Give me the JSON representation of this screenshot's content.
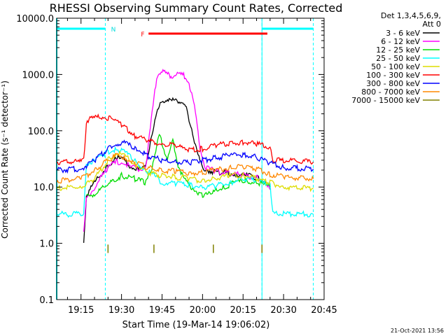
{
  "chart_data": {
    "type": "line",
    "title": "RHESSI Observing Summary Count Rates, Corrected",
    "xlabel": "Start Time (19-Mar-14 19:06:02)",
    "ylabel": "Corrected Count Rate (s⁻¹ detector⁻¹)",
    "y_scale": "log",
    "xlim": [
      "19:06",
      "20:45"
    ],
    "ylim": [
      0.1,
      10000
    ],
    "grid": false,
    "x_ticks": [
      "19:15",
      "19:30",
      "19:45",
      "20:00",
      "20:15",
      "20:30",
      "20:45"
    ],
    "y_ticks": [
      "0.1",
      "1.0",
      "10.0",
      "100.0",
      "1000.0",
      "10000.0"
    ],
    "legend": {
      "position": "top-right",
      "header": [
        "Det 1,3,4,5,6,9,",
        "Att 0"
      ]
    },
    "annotations": {
      "night_label": "N",
      "flare_label": "F",
      "timestamp": "21-Oct-2021 13:56"
    },
    "intervals": {
      "night": [
        [
          "19:06",
          "19:24"
        ],
        [
          "20:22",
          "20:41"
        ]
      ],
      "flare": [
        "19:40",
        "20:24"
      ]
    },
    "series": [
      {
        "name": "3 - 6 keV",
        "color": "#000000",
        "points": [
          [
            "19:16",
            1.0
          ],
          [
            "19:17",
            7
          ],
          [
            "19:20",
            12
          ],
          [
            "19:25",
            24
          ],
          [
            "19:28",
            33
          ],
          [
            "19:31",
            30
          ],
          [
            "19:34",
            22
          ],
          [
            "19:37",
            20
          ],
          [
            "19:39",
            23
          ],
          [
            "19:41",
            80
          ],
          [
            "19:43",
            200
          ],
          [
            "19:45",
            340
          ],
          [
            "19:47",
            360
          ],
          [
            "19:48",
            330
          ],
          [
            "19:50",
            370
          ],
          [
            "19:52",
            320
          ],
          [
            "19:54",
            240
          ],
          [
            "19:56",
            110
          ],
          [
            "19:58",
            40
          ],
          [
            "20:00",
            22
          ],
          [
            "20:03",
            19
          ],
          [
            "20:08",
            18
          ],
          [
            "20:12",
            17
          ],
          [
            "20:16",
            16
          ],
          [
            "20:20",
            15
          ],
          [
            "20:23",
            13
          ],
          [
            "20:25",
            10
          ]
        ]
      },
      {
        "name": "6 - 12 keV",
        "color": "#ff00ff",
        "points": [
          [
            "19:16",
            1.8
          ],
          [
            "19:17",
            6
          ],
          [
            "19:20",
            10
          ],
          [
            "19:25",
            22
          ],
          [
            "19:28",
            28
          ],
          [
            "19:31",
            27
          ],
          [
            "19:34",
            22
          ],
          [
            "19:37",
            20
          ],
          [
            "19:39",
            24
          ],
          [
            "19:41",
            150
          ],
          [
            "19:43",
            900
          ],
          [
            "19:45",
            1200
          ],
          [
            "19:47",
            1000
          ],
          [
            "19:49",
            920
          ],
          [
            "19:51",
            1050
          ],
          [
            "19:53",
            950
          ],
          [
            "19:55",
            700
          ],
          [
            "19:57",
            280
          ],
          [
            "19:59",
            50
          ],
          [
            "20:01",
            22
          ],
          [
            "20:05",
            19
          ],
          [
            "20:10",
            18
          ],
          [
            "20:15",
            16
          ],
          [
            "20:20",
            15
          ],
          [
            "20:23",
            13
          ],
          [
            "20:25",
            9
          ]
        ]
      },
      {
        "name": "12 - 25 keV",
        "color": "#00dd00",
        "points": [
          [
            "19:17",
            7
          ],
          [
            "19:20",
            7.5
          ],
          [
            "19:25",
            11
          ],
          [
            "19:30",
            16
          ],
          [
            "19:35",
            14
          ],
          [
            "19:39",
            12
          ],
          [
            "19:41",
            20
          ],
          [
            "19:43",
            55
          ],
          [
            "19:44",
            85
          ],
          [
            "19:45",
            60
          ],
          [
            "19:47",
            30
          ],
          [
            "19:49",
            65
          ],
          [
            "19:51",
            25
          ],
          [
            "19:53",
            14
          ],
          [
            "19:56",
            10
          ],
          [
            "20:00",
            7
          ],
          [
            "20:04",
            8
          ],
          [
            "20:08",
            10
          ],
          [
            "20:12",
            12
          ],
          [
            "20:16",
            13
          ],
          [
            "20:20",
            12
          ],
          [
            "20:23",
            11
          ],
          [
            "20:25",
            10
          ]
        ]
      },
      {
        "name": "25 - 50 keV",
        "color": "#00ffff",
        "points": [
          [
            "19:06",
            3.3
          ],
          [
            "19:16",
            3.3
          ],
          [
            "19:17",
            26
          ],
          [
            "19:20",
            30
          ],
          [
            "19:24",
            40
          ],
          [
            "19:28",
            48
          ],
          [
            "19:31",
            42
          ],
          [
            "19:35",
            30
          ],
          [
            "19:39",
            20
          ],
          [
            "19:42",
            16
          ],
          [
            "19:45",
            12
          ],
          [
            "19:50",
            11.5
          ],
          [
            "19:55",
            11
          ],
          [
            "20:00",
            10
          ],
          [
            "20:05",
            10.5
          ],
          [
            "20:10",
            12
          ],
          [
            "20:15",
            14
          ],
          [
            "20:20",
            13
          ],
          [
            "20:23",
            12
          ],
          [
            "20:25",
            12
          ],
          [
            "20:26",
            3.3
          ],
          [
            "20:41",
            3.3
          ]
        ]
      },
      {
        "name": "50 - 100 keV",
        "color": "#dddd00",
        "points": [
          [
            "19:06",
            9.5
          ],
          [
            "19:15",
            10
          ],
          [
            "19:20",
            14
          ],
          [
            "19:25",
            30
          ],
          [
            "19:28",
            40
          ],
          [
            "19:31",
            36
          ],
          [
            "19:35",
            25
          ],
          [
            "19:40",
            18
          ],
          [
            "19:45",
            16
          ],
          [
            "19:50",
            15
          ],
          [
            "19:55",
            14
          ],
          [
            "20:00",
            13
          ],
          [
            "20:05",
            14
          ],
          [
            "20:10",
            16
          ],
          [
            "20:15",
            16
          ],
          [
            "20:20",
            14
          ],
          [
            "20:25",
            12
          ],
          [
            "20:30",
            10
          ],
          [
            "20:41",
            9.5
          ]
        ]
      },
      {
        "name": "100 - 300 keV",
        "color": "#ff0000",
        "points": [
          [
            "19:06",
            28
          ],
          [
            "19:15",
            28
          ],
          [
            "19:16",
            30
          ],
          [
            "19:17",
            150
          ],
          [
            "19:20",
            170
          ],
          [
            "19:23",
            180
          ],
          [
            "19:27",
            160
          ],
          [
            "19:31",
            120
          ],
          [
            "19:35",
            80
          ],
          [
            "19:40",
            65
          ],
          [
            "19:45",
            58
          ],
          [
            "19:50",
            55
          ],
          [
            "19:55",
            45
          ],
          [
            "20:00",
            48
          ],
          [
            "20:05",
            55
          ],
          [
            "20:10",
            60
          ],
          [
            "20:15",
            62
          ],
          [
            "20:20",
            58
          ],
          [
            "20:25",
            50
          ],
          [
            "20:26",
            30
          ],
          [
            "20:41",
            28
          ]
        ]
      },
      {
        "name": "300 - 800 keV",
        "color": "#0000ff",
        "points": [
          [
            "19:06",
            20
          ],
          [
            "19:15",
            21
          ],
          [
            "19:20",
            30
          ],
          [
            "19:25",
            48
          ],
          [
            "19:28",
            58
          ],
          [
            "19:31",
            60
          ],
          [
            "19:35",
            50
          ],
          [
            "19:40",
            35
          ],
          [
            "19:45",
            30
          ],
          [
            "19:50",
            28
          ],
          [
            "19:55",
            27
          ],
          [
            "20:00",
            30
          ],
          [
            "20:05",
            33
          ],
          [
            "20:10",
            37
          ],
          [
            "20:15",
            38
          ],
          [
            "20:20",
            34
          ],
          [
            "20:25",
            27
          ],
          [
            "20:30",
            22
          ],
          [
            "20:41",
            21
          ]
        ]
      },
      {
        "name": "800 - 7000 keV",
        "color": "#ff8800",
        "points": [
          [
            "19:06",
            13
          ],
          [
            "19:15",
            14
          ],
          [
            "19:20",
            20
          ],
          [
            "19:25",
            30
          ],
          [
            "19:28",
            36
          ],
          [
            "19:31",
            33
          ],
          [
            "19:35",
            27
          ],
          [
            "19:40",
            22
          ],
          [
            "19:45",
            20
          ],
          [
            "19:50",
            19
          ],
          [
            "19:55",
            18
          ],
          [
            "20:00",
            18
          ],
          [
            "20:05",
            20
          ],
          [
            "20:10",
            22
          ],
          [
            "20:15",
            23
          ],
          [
            "20:20",
            21
          ],
          [
            "20:25",
            17
          ],
          [
            "20:30",
            15
          ],
          [
            "20:41",
            14
          ]
        ]
      },
      {
        "name": "7000 - 15000 keV",
        "color": "#808000",
        "points": [
          [
            "19:25",
            0.8
          ],
          [
            "19:42",
            0.8
          ],
          [
            "20:04",
            0.8
          ],
          [
            "20:22",
            0.8
          ]
        ]
      }
    ]
  }
}
